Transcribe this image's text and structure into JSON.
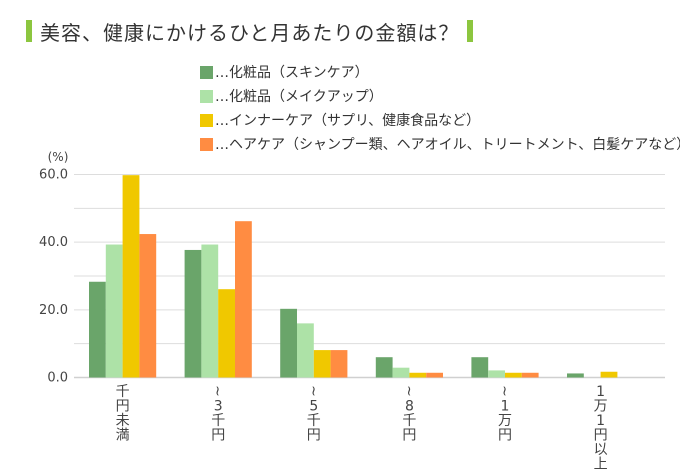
{
  "chart_data": {
    "type": "bar",
    "title": "美容、健康にかけるひと月あたりの金額は？",
    "ylabel": "(%)",
    "xlabel": "",
    "ylim": [
      0,
      60
    ],
    "yticks": [
      0,
      10,
      20,
      30,
      40,
      50,
      60
    ],
    "ytick_labels": [
      "0.0",
      "20.0",
      "40.0",
      "60.0"
    ],
    "ytick_label_values": [
      0,
      20,
      40,
      60
    ],
    "grid": true,
    "legend_position": "top",
    "categories": [
      "千円未満",
      "〜3千円",
      "〜5千円",
      "〜8千円",
      "〜1万円",
      "1万1円以上"
    ],
    "series": [
      {
        "name": "…化粧品（スキンケア）",
        "color": "#6aa56a",
        "values": [
          28.3,
          37.7,
          20.3,
          6.0,
          6.0,
          1.2
        ]
      },
      {
        "name": "…化粧品（メイクアップ）",
        "color": "#ade2a7",
        "values": [
          39.3,
          39.3,
          16.0,
          2.9,
          2.1,
          0
        ]
      },
      {
        "name": "…インナーケア（サプリ、健康食品など）",
        "color": "#f0c800",
        "values": [
          59.8,
          26.1,
          8.1,
          1.4,
          1.4,
          1.7
        ]
      },
      {
        "name": "…ヘアケア（シャンプー類、ヘアオイル、トリートメント、白髪ケアなど）",
        "color": "#ff8c42",
        "values": [
          42.4,
          46.2,
          8.1,
          1.4,
          1.4,
          0
        ]
      }
    ]
  },
  "colors": {
    "title_accent": "#8cc63f",
    "grid": "#dddddd"
  }
}
